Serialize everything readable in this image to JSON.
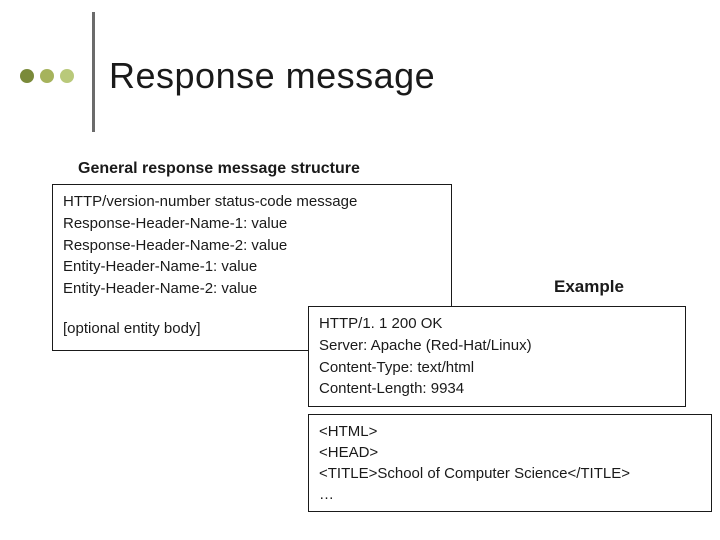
{
  "title": "Response message",
  "dots": {
    "colors": [
      "#7a8a3a",
      "#a6b35c",
      "#b9c97a"
    ]
  },
  "vline_color": "#6b6b6b",
  "subtitle": "General response message structure",
  "structure": {
    "lines": [
      "HTTP/version-number  status-code  message",
      "Response-Header-Name-1: value",
      "Response-Header-Name-2: value",
      "Entity-Header-Name-1: value",
      "Entity-Header-Name-2: value"
    ],
    "optional": "[optional entity body]",
    "border_color": "#1a1a1a",
    "font_size": 15
  },
  "example_label": "Example",
  "example1": {
    "lines": [
      "HTTP/1. 1  200  OK",
      "Server: Apache (Red-Hat/Linux)",
      "Content-Type: text/html",
      "Content-Length: 9934"
    ],
    "border_color": "#1a1a1a"
  },
  "example2": {
    "lines": [
      "<HTML>",
      "<HEAD>",
      "<TITLE>School of Computer Science</TITLE>",
      "…"
    ],
    "border_color": "#1a1a1a"
  },
  "colors": {
    "background": "#ffffff",
    "text": "#1a1a1a"
  }
}
